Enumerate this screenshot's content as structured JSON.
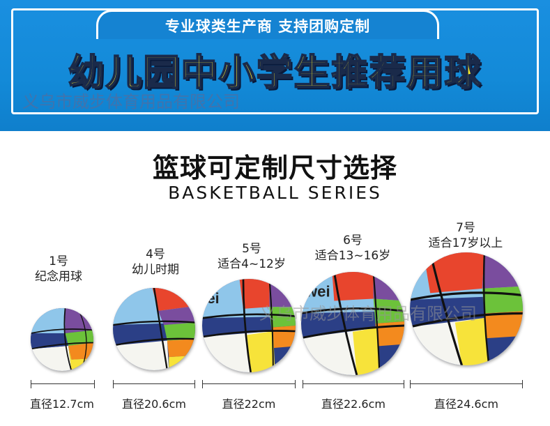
{
  "banner": {
    "subtitle": "专业球类生产商  支持团购定制",
    "headline": "幼儿园中小学生推荐用球",
    "company": "义乌市威步体育用品有限公司"
  },
  "watermark": "义乌市威步体育用品有限公司",
  "title": {
    "cn": "篮球可定制尺寸选择",
    "en": "BASKETBALL SERIES"
  },
  "balls": [
    {
      "size": "1号",
      "use": "纪念用球",
      "diameter": "直径12.7cm"
    },
    {
      "size": "4号",
      "use": "幼儿时期",
      "diameter": "直径20.6cm"
    },
    {
      "size": "5号",
      "use": "适合4~12岁",
      "diameter": "直径22cm",
      "logo": "ei"
    },
    {
      "size": "6号",
      "use": "适合13~16岁",
      "diameter": "直径22.6cm",
      "logo": "wei"
    },
    {
      "size": "7号",
      "use": "适合17岁以上",
      "diameter": "直径24.6cm"
    }
  ],
  "colors": {
    "banner_blue": "#138ad8",
    "headline_yellow": "#ffee2a",
    "ball_navy": "#2b3f86",
    "ball_sky": "#8fc6ea",
    "ball_red": "#e8452d",
    "ball_orange": "#f38a1e",
    "ball_yellow": "#f7e33a",
    "ball_green": "#6cc23a",
    "ball_purple": "#7a4d9e",
    "ball_white": "#f5f5f0"
  }
}
